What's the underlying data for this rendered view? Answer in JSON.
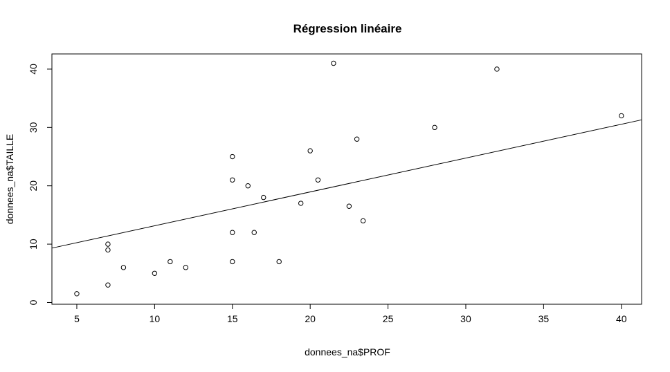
{
  "chart_data": {
    "type": "scatter",
    "title": "Régression linéaire",
    "xlabel": "donnees_na$PROF",
    "ylabel": "donnees_na$TAILLE",
    "xlim": [
      3.4,
      41.3
    ],
    "ylim": [
      -0.3,
      42.6
    ],
    "x_ticks": [
      5,
      10,
      15,
      20,
      25,
      30,
      35,
      40
    ],
    "y_ticks": [
      0,
      10,
      20,
      30,
      40
    ],
    "grid": false,
    "legend": "none",
    "points": [
      {
        "x": 5,
        "y": 1.5
      },
      {
        "x": 7,
        "y": 3
      },
      {
        "x": 7,
        "y": 9
      },
      {
        "x": 7,
        "y": 10
      },
      {
        "x": 8,
        "y": 6
      },
      {
        "x": 10,
        "y": 5
      },
      {
        "x": 11,
        "y": 7
      },
      {
        "x": 12,
        "y": 6
      },
      {
        "x": 15,
        "y": 7
      },
      {
        "x": 15,
        "y": 12
      },
      {
        "x": 15,
        "y": 21
      },
      {
        "x": 15,
        "y": 25
      },
      {
        "x": 16,
        "y": 20
      },
      {
        "x": 16.4,
        "y": 12
      },
      {
        "x": 17,
        "y": 18
      },
      {
        "x": 18,
        "y": 7
      },
      {
        "x": 19.4,
        "y": 17
      },
      {
        "x": 20,
        "y": 26
      },
      {
        "x": 20.5,
        "y": 21
      },
      {
        "x": 21.5,
        "y": 41
      },
      {
        "x": 22.5,
        "y": 16.5
      },
      {
        "x": 23,
        "y": 28
      },
      {
        "x": 23.4,
        "y": 14
      },
      {
        "x": 28,
        "y": 30
      },
      {
        "x": 32,
        "y": 40
      },
      {
        "x": 40,
        "y": 32
      }
    ],
    "regression_line": {
      "intercept": 7.35,
      "slope": 0.58
    }
  }
}
